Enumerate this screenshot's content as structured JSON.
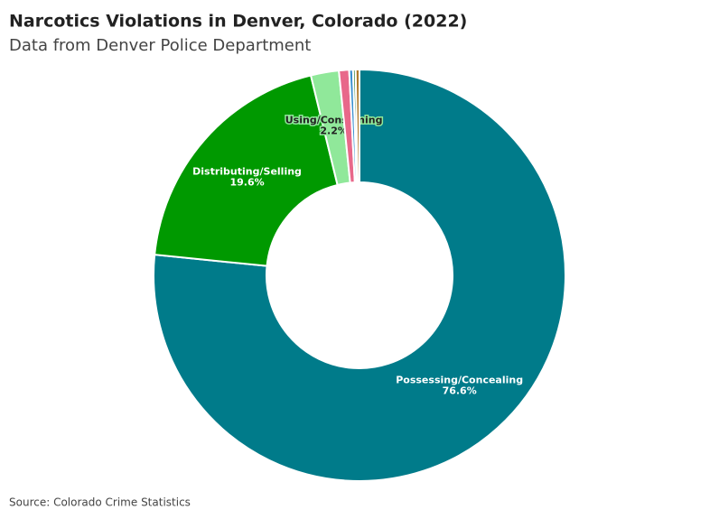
{
  "chart_data": {
    "type": "donut",
    "title": "Narcotics Violations in Denver, Colorado (2022)",
    "subtitle": "Data from Denver Police Department",
    "source": "Source: Colorado Crime Statistics",
    "categories": [
      "Possessing/Concealing",
      "Distributing/Selling",
      "Using/Consuming",
      null,
      null,
      null,
      null
    ],
    "values": [
      76.6,
      19.6,
      2.2,
      0.8,
      0.3,
      0.2,
      0.3
    ],
    "value_labels": [
      "76.6%",
      "19.6%",
      "2.2%",
      null,
      null,
      null,
      null
    ],
    "colors": [
      "#007b8a",
      "#009900",
      "#90e89a",
      "#e8688a",
      "#3a8fd0",
      "#2e7d32",
      "#b07a2a"
    ]
  }
}
